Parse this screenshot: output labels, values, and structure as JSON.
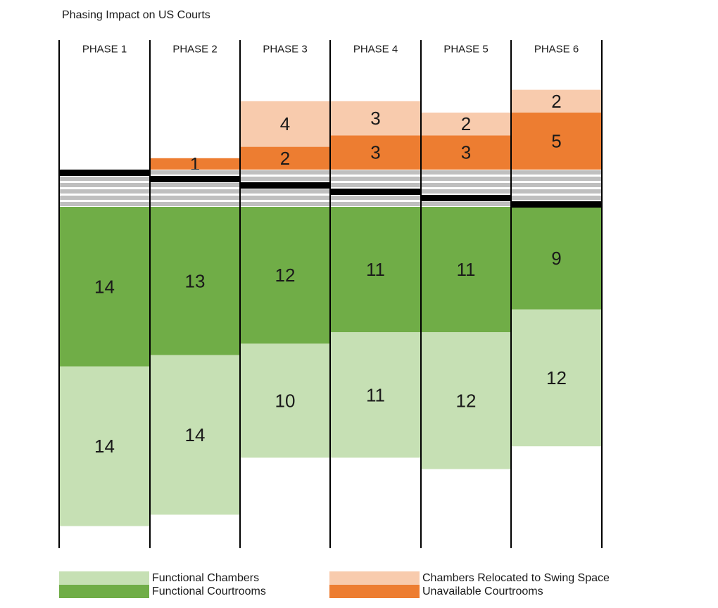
{
  "chart_data": {
    "type": "bar",
    "title": "Phasing Impact on US Courts",
    "categories": [
      "PHASE 1",
      "PHASE 2",
      "PHASE 3",
      "PHASE 4",
      "PHASE 5",
      "PHASE 6"
    ],
    "series": [
      {
        "name": "Functional Chambers",
        "values": [
          14,
          14,
          10,
          11,
          12,
          12
        ],
        "color": "#c6e0b4"
      },
      {
        "name": "Functional Courtrooms",
        "values": [
          14,
          13,
          12,
          11,
          11,
          9
        ],
        "color": "#70ad47"
      },
      {
        "name": "Unavailable Courtrooms",
        "values": [
          0,
          1,
          2,
          3,
          3,
          5
        ],
        "color": "#ed7d31"
      },
      {
        "name": "Chambers Relocated to Swing Space",
        "values": [
          0,
          0,
          4,
          3,
          2,
          2
        ],
        "color": "#f8cbad"
      }
    ],
    "break_band_color": "#bfbfbf",
    "floor_marker_color": "#000000",
    "legend_placement": "bottom",
    "grid": false
  },
  "legend": {
    "items": [
      {
        "label": "Functional Chambers",
        "color": "#c6e0b4"
      },
      {
        "label": "Functional Courtrooms",
        "color": "#70ad47"
      },
      {
        "label": "Chambers Relocated to Swing Space",
        "color": "#f8cbad"
      },
      {
        "label": "Unavailable Courtrooms",
        "color": "#ed7d31"
      }
    ]
  }
}
